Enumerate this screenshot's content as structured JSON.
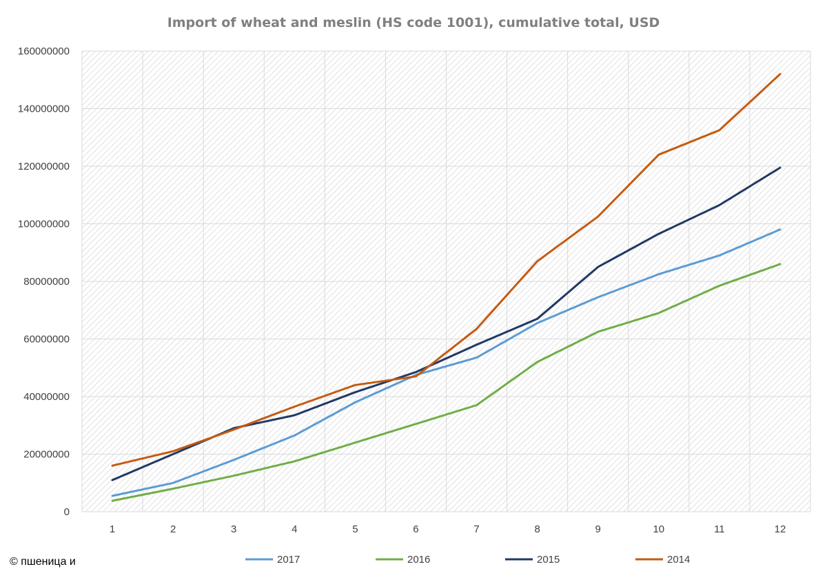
{
  "credit": "© пшеница и",
  "chart_data": {
    "type": "line",
    "title": "Import of wheat and meslin (HS code 1001), cumulative total, USD",
    "xlabel": "",
    "ylabel": "",
    "x": [
      1,
      2,
      3,
      4,
      5,
      6,
      7,
      8,
      9,
      10,
      11,
      12
    ],
    "ylim": [
      0,
      160000000
    ],
    "yticks": [
      0,
      20000000,
      40000000,
      60000000,
      80000000,
      100000000,
      120000000,
      140000000,
      160000000
    ],
    "grid": true,
    "legend_position": "bottom",
    "series": [
      {
        "name": "2017",
        "color": "#5b9bd5",
        "values": [
          5500000,
          10000000,
          18000000,
          26500000,
          38000000,
          47500000,
          53500000,
          65500000,
          74500000,
          82500000,
          89000000,
          98000000
        ]
      },
      {
        "name": "2016",
        "color": "#70ad47",
        "values": [
          3800000,
          8000000,
          12500000,
          17500000,
          24000000,
          30500000,
          37000000,
          52000000,
          62500000,
          69000000,
          78500000,
          86000000
        ]
      },
      {
        "name": "2015",
        "color": "#203864",
        "values": [
          11000000,
          20000000,
          29000000,
          33500000,
          41500000,
          48500000,
          58000000,
          67000000,
          85000000,
          96500000,
          106500000,
          119500000
        ]
      },
      {
        "name": "2014",
        "color": "#c55a11",
        "values": [
          16000000,
          21000000,
          28500000,
          36500000,
          44000000,
          47000000,
          63500000,
          87000000,
          102500000,
          124000000,
          132500000,
          152000000
        ]
      }
    ]
  }
}
